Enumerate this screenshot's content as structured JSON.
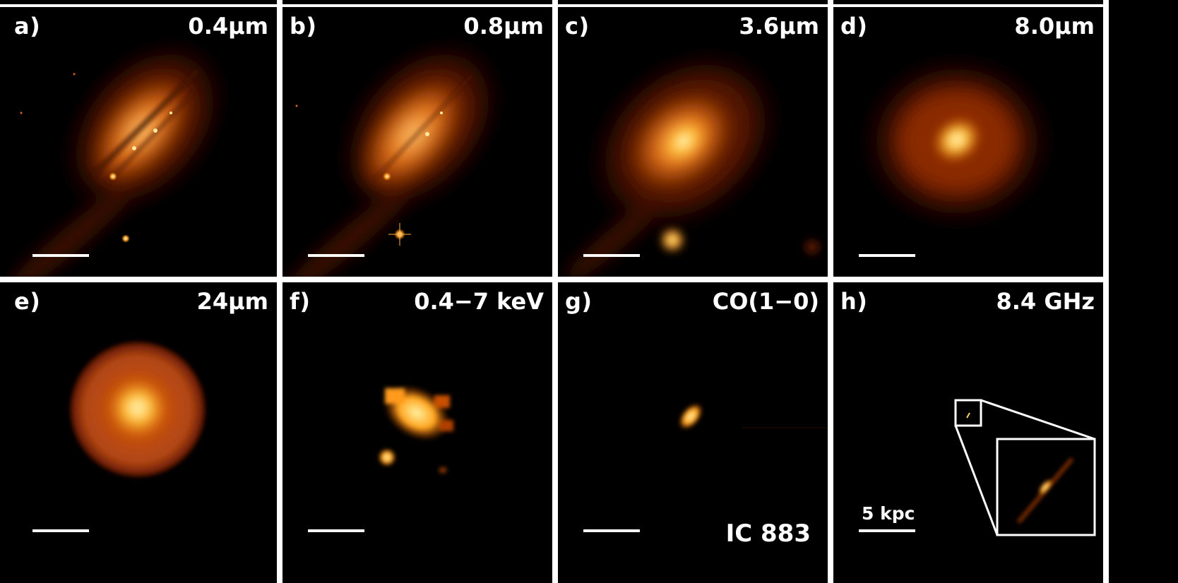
{
  "panels": [
    {
      "letter": "a)",
      "band": "0.4μm"
    },
    {
      "letter": "b)",
      "band": "0.8μm"
    },
    {
      "letter": "c)",
      "band": "3.6μm"
    },
    {
      "letter": "d)",
      "band": "8.0μm"
    },
    {
      "letter": "e)",
      "band": "24μm"
    },
    {
      "letter": "f)",
      "band": "0.4−7 keV"
    },
    {
      "letter": "g)",
      "band": "CO(1−0)",
      "target": "IC 883"
    },
    {
      "letter": "h)",
      "band": "8.4 GHz",
      "scale_label": "5 kpc"
    }
  ],
  "colors": {
    "background": "#000000",
    "text": "#ffffff",
    "colormap": [
      "#000000",
      "#5a1200",
      "#c84a00",
      "#ff9a1f",
      "#ffef9a"
    ]
  }
}
